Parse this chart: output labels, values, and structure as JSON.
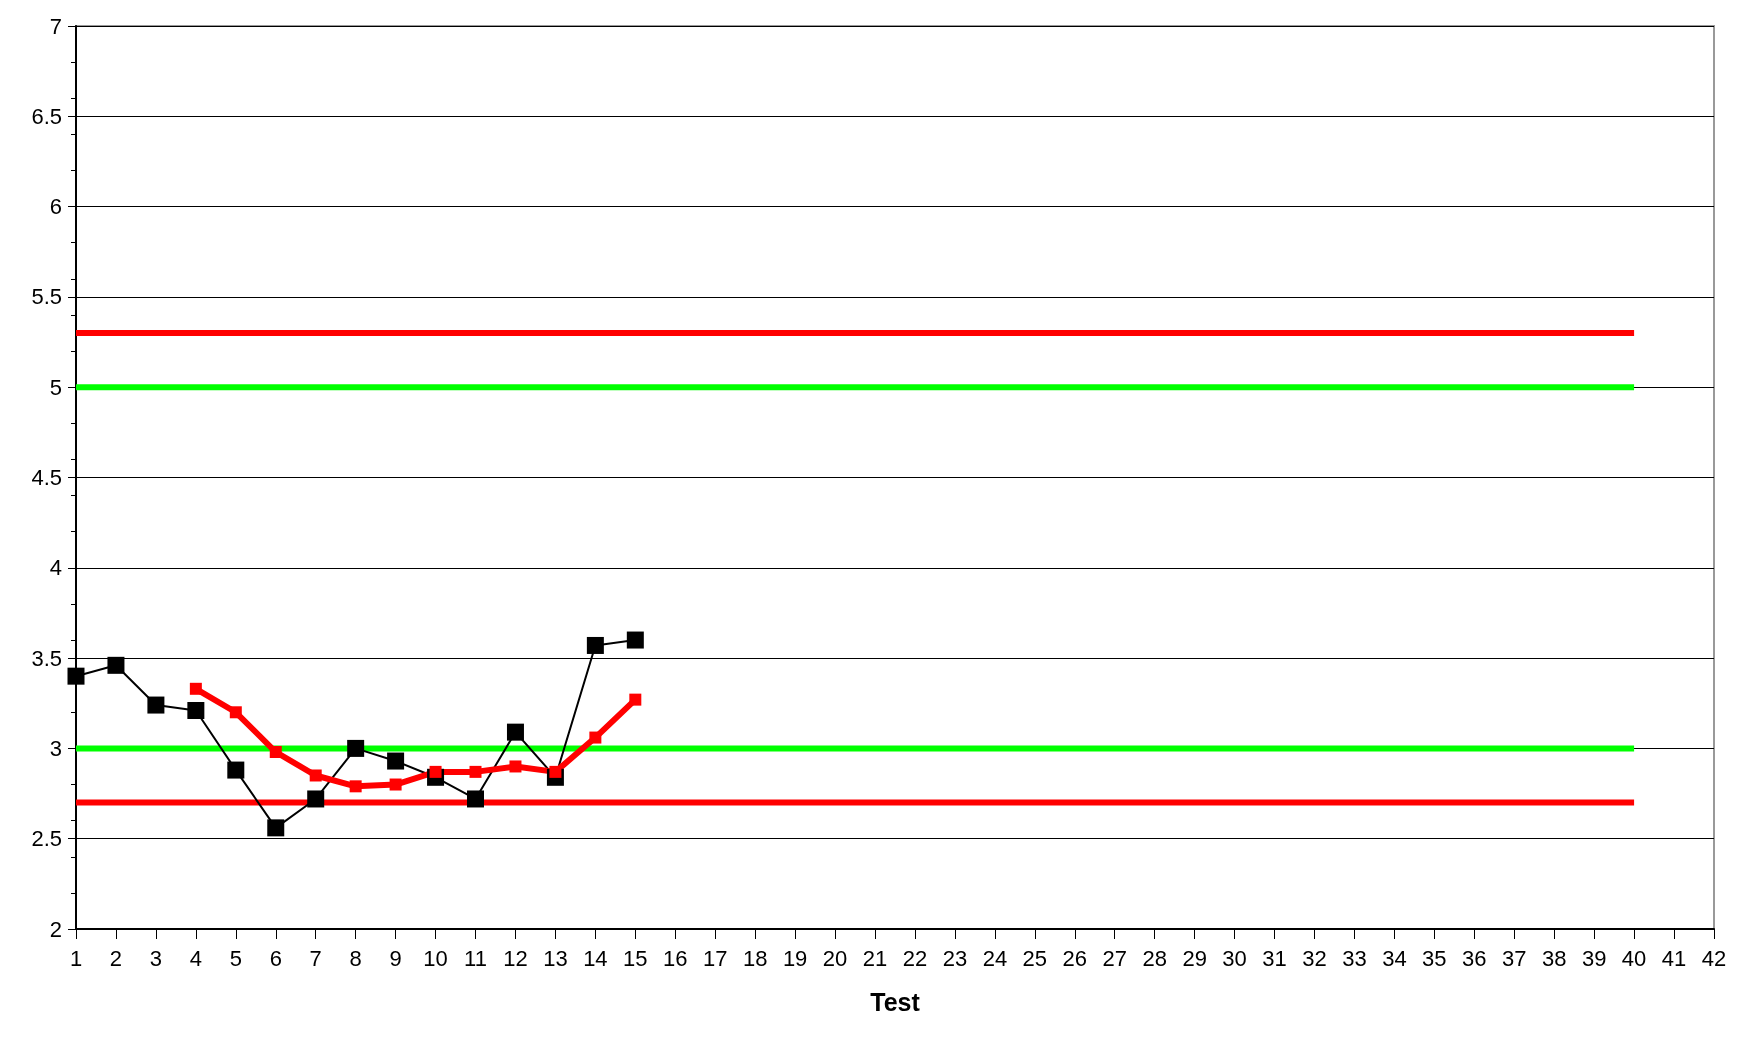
{
  "chart_data": {
    "type": "line",
    "xlabel": "Test",
    "xlim": [
      1,
      42
    ],
    "xticks": [
      1,
      2,
      3,
      4,
      5,
      6,
      7,
      8,
      9,
      10,
      11,
      12,
      13,
      14,
      15,
      16,
      17,
      18,
      19,
      20,
      21,
      22,
      23,
      24,
      25,
      26,
      27,
      28,
      29,
      30,
      31,
      32,
      33,
      34,
      35,
      36,
      37,
      38,
      39,
      40,
      41,
      42
    ],
    "ylim": [
      2,
      7
    ],
    "yticks": [
      2,
      2.5,
      3,
      3.5,
      4,
      4.5,
      5,
      5.5,
      6,
      6.5,
      7
    ],
    "grid": "y",
    "marker": "square",
    "series": [
      {
        "color": "#000000",
        "x": [
          1,
          2,
          3,
          4,
          5,
          6,
          7,
          8,
          9,
          10,
          11,
          12,
          13,
          14,
          15
        ],
        "values": [
          3.4,
          3.46,
          3.24,
          3.21,
          2.88,
          2.56,
          2.72,
          3.0,
          2.93,
          2.84,
          2.72,
          3.09,
          2.84,
          3.57,
          3.6
        ]
      },
      {
        "color": "#ff0000",
        "x": [
          4,
          5,
          6,
          7,
          8,
          9,
          10,
          11,
          12,
          13,
          14,
          15
        ],
        "values": [
          3.33,
          3.2,
          2.98,
          2.85,
          2.79,
          2.8,
          2.87,
          2.87,
          2.9,
          2.87,
          3.06,
          3.27
        ]
      },
      {
        "color": "#ff0000",
        "marker": "none",
        "x": [
          1,
          40
        ],
        "values": [
          5.3,
          5.3
        ]
      },
      {
        "color": "#00ff00",
        "marker": "none",
        "x": [
          1,
          40
        ],
        "values": [
          5,
          5
        ]
      },
      {
        "color": "#00ff00",
        "marker": "none",
        "x": [
          1,
          40
        ],
        "values": [
          3,
          3
        ]
      },
      {
        "color": "#ff0000",
        "marker": "none",
        "x": [
          1,
          40
        ],
        "values": [
          2.7,
          2.7
        ]
      }
    ]
  }
}
